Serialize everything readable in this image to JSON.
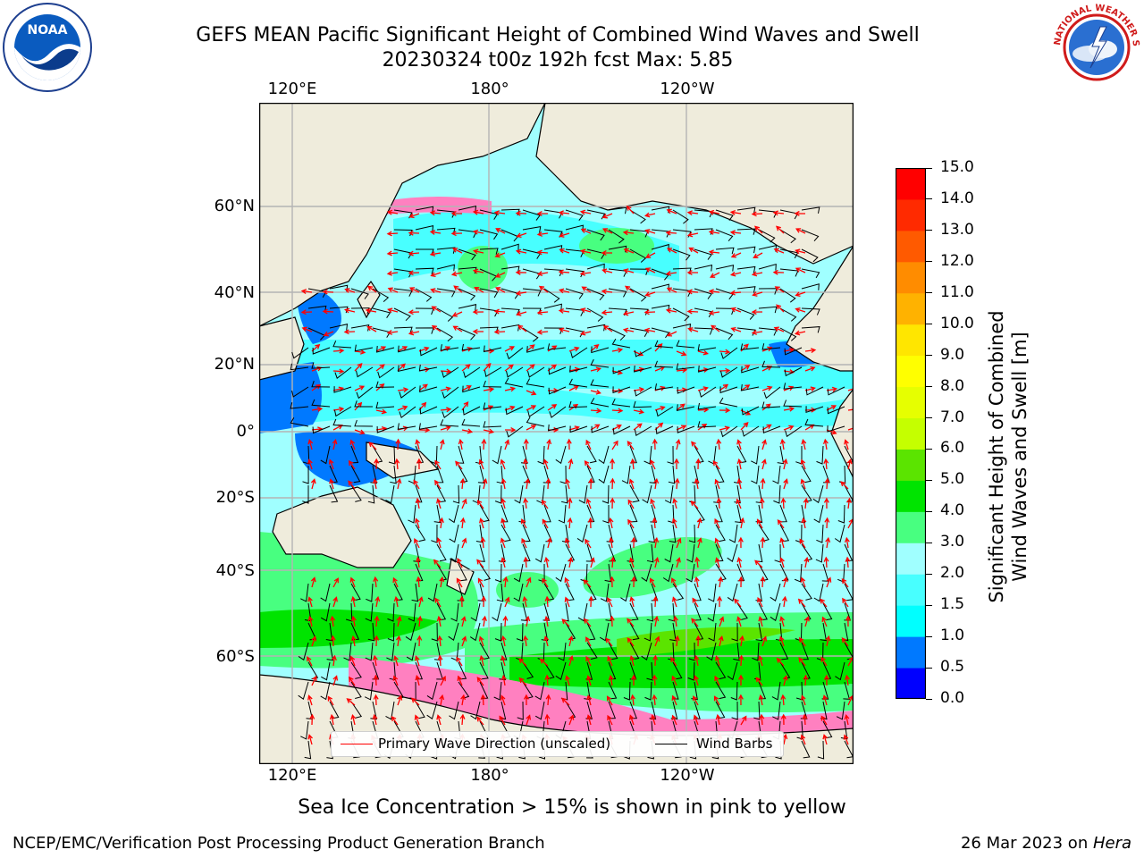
{
  "header": {
    "title_line1": "GEFS MEAN Pacific Significant Height of Combined Wind Waves and Swell",
    "title_line2": "20230324 t00z 192h fcst   Max: 5.85"
  },
  "logos": {
    "noaa_text": "NOAA",
    "nws_text": "NATIONAL WEATHER SERVICE"
  },
  "map": {
    "lon_labels_top": [
      "120°E",
      "180°",
      "120°W"
    ],
    "lon_labels_bottom": [
      "120°E",
      "180°",
      "120°W"
    ],
    "lat_labels": [
      "60°N",
      "40°N",
      "20°N",
      "0°",
      "20°S",
      "40°S",
      "60°S"
    ],
    "colors": {
      "land": "#efecdc",
      "grid": "#b4b4b4",
      "wave_direction": "#ff0000",
      "wind_barb": "#000000"
    }
  },
  "legend": {
    "primary_wave": "Primary Wave Direction (unscaled)",
    "wind_barbs": "Wind Barbs"
  },
  "colorbar": {
    "label_line1": "Significant Height of Combined",
    "label_line2": "Wind Waves and Swell [m]",
    "ticks": [
      "0.0",
      "0.5",
      "1.0",
      "1.5",
      "2.0",
      "3.0",
      "4.0",
      "5.0",
      "6.0",
      "7.0",
      "8.0",
      "9.0",
      "10.0",
      "11.0",
      "12.0",
      "13.0",
      "14.0",
      "15.0"
    ],
    "colors": [
      "#0000ff",
      "#0079ff",
      "#00ffff",
      "#48ffff",
      "#a0ffff",
      "#48ff80",
      "#00e400",
      "#5be400",
      "#c5ff00",
      "#e6ff00",
      "#ffff00",
      "#ffe600",
      "#ffb200",
      "#ff8c00",
      "#ff5a00",
      "#ff2a00",
      "#ff0000"
    ]
  },
  "sea_ice_note": "Sea Ice Concentration > 15% is shown in pink to yellow",
  "footer": {
    "left": "NCEP/EMC/Verification Post Processing Product Generation Branch",
    "right_date": "26 Mar 2023 on ",
    "right_host": "Hera"
  }
}
